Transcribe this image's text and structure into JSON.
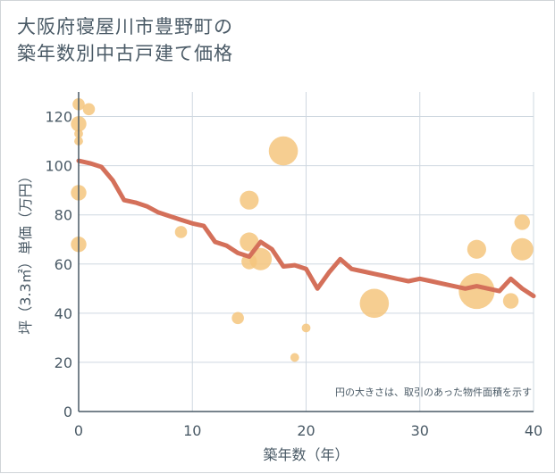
{
  "title_line1": "大阪府寝屋川市豊野町の",
  "title_line2": "築年数別中古戸建て価格",
  "chart_data": {
    "type": "scatter+line",
    "xlabel": "築年数（年）",
    "ylabel": "坪（3.3㎡）単価（万円）",
    "xlim": [
      0,
      40
    ],
    "ylim": [
      0,
      130
    ],
    "xticks": [
      0,
      10,
      20,
      30,
      40
    ],
    "yticks": [
      0,
      20,
      40,
      60,
      80,
      100,
      120
    ],
    "note": "円の大きさは、取引のあった物件面積を示す",
    "colors": {
      "line": "#d4705a",
      "bubble": "#f5c57e",
      "grid": "#cfd8e0",
      "axis": "#4a5a66"
    },
    "bubbles": [
      {
        "x": 0,
        "y": 125,
        "size": 2
      },
      {
        "x": 0.9,
        "y": 123,
        "size": 2
      },
      {
        "x": 0,
        "y": 117,
        "size": 3
      },
      {
        "x": 0,
        "y": 113,
        "size": 1
      },
      {
        "x": 0,
        "y": 110,
        "size": 1
      },
      {
        "x": 0,
        "y": 89,
        "size": 3
      },
      {
        "x": 0,
        "y": 68,
        "size": 3
      },
      {
        "x": 9,
        "y": 73,
        "size": 2
      },
      {
        "x": 14,
        "y": 38,
        "size": 2
      },
      {
        "x": 15,
        "y": 86,
        "size": 4
      },
      {
        "x": 15,
        "y": 69,
        "size": 4
      },
      {
        "x": 15,
        "y": 61,
        "size": 3
      },
      {
        "x": 16,
        "y": 62,
        "size": 5
      },
      {
        "x": 18,
        "y": 106,
        "size": 7
      },
      {
        "x": 19,
        "y": 22,
        "size": 1
      },
      {
        "x": 20,
        "y": 34,
        "size": 1
      },
      {
        "x": 26,
        "y": 44,
        "size": 7
      },
      {
        "x": 35,
        "y": 66,
        "size": 4
      },
      {
        "x": 35,
        "y": 49,
        "size": 9
      },
      {
        "x": 38,
        "y": 45,
        "size": 3
      },
      {
        "x": 39,
        "y": 77,
        "size": 3
      },
      {
        "x": 39,
        "y": 66,
        "size": 5
      }
    ],
    "line": {
      "x": [
        0,
        1,
        2,
        3,
        4,
        5,
        6,
        7,
        8,
        9,
        10,
        11,
        12,
        13,
        14,
        15,
        16,
        17,
        18,
        19,
        20,
        21,
        22,
        23,
        24,
        25,
        26,
        27,
        28,
        29,
        30,
        31,
        32,
        33,
        34,
        35,
        36,
        37,
        38,
        39,
        40
      ],
      "y": [
        102,
        101,
        99.5,
        94,
        86,
        85,
        83.5,
        81,
        79.5,
        78,
        76.5,
        75.5,
        69,
        67.5,
        64.5,
        63,
        69,
        66,
        59,
        59.5,
        58,
        50,
        56.5,
        62,
        58,
        57,
        56,
        55,
        54,
        53,
        54,
        53,
        52,
        51,
        50,
        51,
        50,
        49,
        54,
        50,
        47
      ]
    }
  }
}
